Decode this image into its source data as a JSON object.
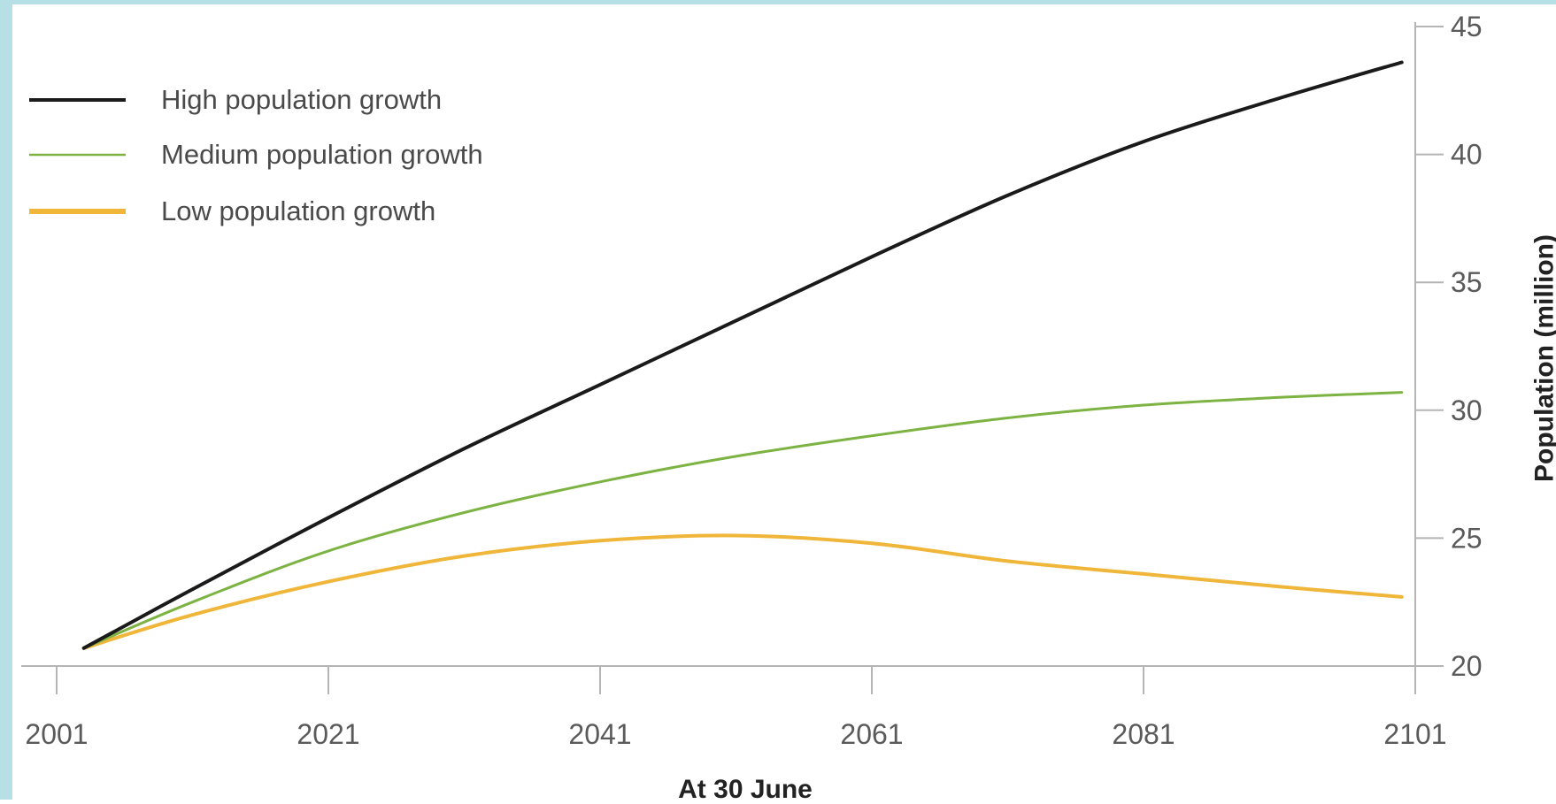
{
  "chart_data": {
    "type": "line",
    "title": "",
    "xlabel": "At 30 June",
    "ylabel": "Population (million)",
    "x_ticks": [
      "2001",
      "2021",
      "2041",
      "2061",
      "2081",
      "2101"
    ],
    "y_ticks": [
      "20",
      "25",
      "30",
      "35",
      "40",
      "45"
    ],
    "xlim": [
      2001,
      2101
    ],
    "ylim": [
      20,
      45
    ],
    "grid": false,
    "legend_position": "top-left",
    "series": [
      {
        "name": "High population growth",
        "color": "#1a1a1a",
        "x": [
          2003,
          2011,
          2021,
          2031,
          2041,
          2051,
          2061,
          2071,
          2081,
          2091,
          2100
        ],
        "values": [
          20.7,
          23.0,
          25.8,
          28.5,
          31.0,
          33.5,
          36.0,
          38.4,
          40.5,
          42.2,
          43.6
        ]
      },
      {
        "name": "Medium population growth",
        "color": "#7cb342",
        "x": [
          2003,
          2011,
          2021,
          2031,
          2041,
          2051,
          2061,
          2071,
          2081,
          2091,
          2100
        ],
        "values": [
          20.7,
          22.5,
          24.5,
          26.0,
          27.2,
          28.2,
          29.0,
          29.7,
          30.2,
          30.5,
          30.7
        ]
      },
      {
        "name": "Low population growth",
        "color": "#f0b63a",
        "x": [
          2003,
          2011,
          2021,
          2031,
          2041,
          2051,
          2061,
          2071,
          2081,
          2091,
          2100
        ],
        "values": [
          20.7,
          22.0,
          23.3,
          24.3,
          24.9,
          25.1,
          24.8,
          24.1,
          23.6,
          23.1,
          22.7
        ]
      }
    ]
  }
}
